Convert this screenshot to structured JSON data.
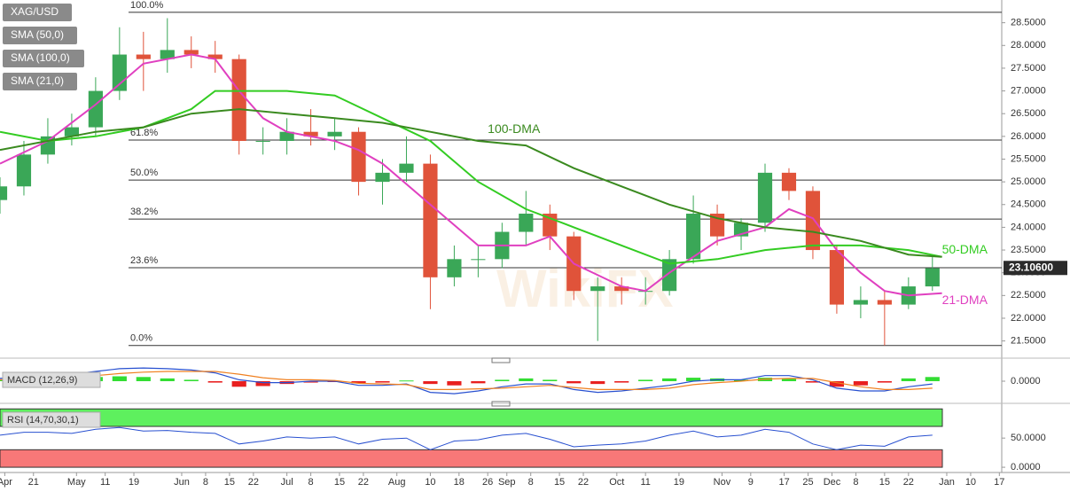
{
  "watermark": "WikiFX",
  "legend_buttons": [
    "XAG/USD",
    "SMA (50,0)",
    "SMA (100,0)",
    "SMA (21,0)"
  ],
  "chart_data": [
    {
      "type": "candlestick",
      "x": [
        0,
        5,
        10,
        15,
        20,
        25,
        30,
        35,
        40,
        45,
        50,
        55,
        60,
        65,
        70,
        75,
        80,
        85,
        90,
        95,
        100,
        105,
        110,
        115,
        120,
        125,
        130,
        135,
        140,
        145,
        150,
        155,
        160,
        165,
        170,
        175,
        180,
        185,
        190,
        195
      ],
      "open": [
        24.6,
        24.9,
        25.6,
        26.0,
        26.2,
        27.0,
        27.8,
        27.7,
        27.9,
        27.8,
        27.7,
        25.9,
        25.9,
        26.1,
        26.0,
        26.1,
        25.0,
        25.2,
        25.4,
        22.9,
        23.3,
        23.3,
        23.9,
        24.3,
        23.8,
        22.6,
        22.7,
        22.6,
        22.6,
        23.3,
        24.3,
        23.8,
        24.1,
        25.2,
        24.8,
        23.5,
        22.3,
        22.4,
        22.3,
        22.7
      ],
      "high": [
        25.1,
        25.9,
        26.4,
        26.5,
        27.3,
        28.4,
        28.3,
        28.6,
        28.2,
        28.1,
        27.8,
        26.2,
        26.4,
        26.6,
        26.4,
        26.2,
        25.5,
        26.0,
        25.6,
        23.6,
        23.6,
        24.1,
        24.8,
        24.5,
        23.9,
        22.9,
        22.9,
        22.9,
        23.5,
        24.7,
        24.5,
        24.2,
        25.4,
        25.3,
        24.9,
        23.6,
        22.7,
        22.6,
        22.9,
        23.4
      ],
      "low": [
        24.3,
        24.7,
        25.4,
        25.8,
        26.0,
        26.8,
        27.0,
        27.4,
        27.5,
        27.4,
        25.6,
        25.6,
        25.6,
        25.8,
        25.7,
        24.7,
        24.5,
        25.0,
        22.2,
        22.7,
        22.9,
        23.1,
        23.6,
        23.5,
        22.4,
        21.5,
        22.3,
        22.3,
        22.5,
        23.2,
        23.6,
        23.5,
        23.9,
        24.6,
        23.3,
        22.1,
        22.0,
        21.4,
        22.2,
        22.6
      ],
      "close": [
        24.9,
        25.6,
        26.0,
        26.2,
        27.0,
        27.8,
        27.7,
        27.9,
        27.8,
        27.7,
        25.9,
        25.9,
        26.1,
        26.0,
        26.1,
        25.0,
        25.2,
        25.4,
        22.9,
        23.3,
        23.3,
        23.9,
        24.3,
        23.8,
        22.6,
        22.7,
        22.6,
        22.6,
        23.3,
        24.3,
        23.8,
        24.1,
        25.2,
        24.8,
        23.5,
        22.3,
        22.4,
        22.3,
        22.7,
        23.1
      ],
      "up_color": "#3aa757",
      "down_color": "#e0533a",
      "series": [
        {
          "name": "SMA (21,0)",
          "color": "#e040c0",
          "x": [
            0,
            10,
            20,
            30,
            40,
            45,
            50,
            55,
            60,
            70,
            75,
            80,
            90,
            100,
            110,
            115,
            120,
            130,
            135,
            140,
            150,
            160,
            165,
            170,
            175,
            180,
            185,
            190,
            197
          ],
          "values": [
            25.4,
            25.9,
            26.7,
            27.6,
            27.8,
            27.7,
            27.0,
            26.4,
            26.1,
            25.9,
            25.7,
            25.4,
            24.5,
            23.6,
            23.6,
            23.8,
            23.2,
            22.7,
            22.6,
            23.0,
            23.7,
            24.0,
            24.4,
            24.2,
            23.5,
            23.0,
            22.6,
            22.5,
            22.55
          ]
        },
        {
          "name": "SMA (50,0)",
          "color": "#33cc22",
          "x": [
            0,
            10,
            20,
            30,
            40,
            45,
            50,
            60,
            70,
            80,
            90,
            100,
            110,
            120,
            130,
            140,
            150,
            160,
            170,
            180,
            190,
            197
          ],
          "values": [
            26.1,
            25.9,
            26.0,
            26.2,
            26.6,
            27.0,
            27.0,
            27.0,
            26.9,
            26.4,
            25.9,
            25.0,
            24.4,
            24.0,
            23.6,
            23.2,
            23.3,
            23.5,
            23.6,
            23.6,
            23.5,
            23.35
          ]
        },
        {
          "name": "SMA (100,0)",
          "color": "#3a8a1f",
          "x": [
            0,
            20,
            30,
            40,
            50,
            60,
            70,
            80,
            90,
            100,
            110,
            120,
            130,
            140,
            150,
            160,
            170,
            180,
            190,
            197
          ],
          "values": [
            25.7,
            26.1,
            26.2,
            26.5,
            26.6,
            26.5,
            26.4,
            26.3,
            26.1,
            25.9,
            25.8,
            25.3,
            24.9,
            24.5,
            24.2,
            24.0,
            23.9,
            23.7,
            23.4,
            23.35
          ]
        }
      ],
      "annotations": [
        {
          "text": "100-DMA",
          "x": 102,
          "y": 26.15,
          "color": "#3a8a1f"
        },
        {
          "text": "50-DMA",
          "x": 197,
          "y": 23.5,
          "color": "#33cc22"
        },
        {
          "text": "21-DMA",
          "x": 197,
          "y": 22.38,
          "color": "#e040c0"
        }
      ],
      "fib_levels": [
        {
          "value": 28.73,
          "label": "100.0%"
        },
        {
          "value": 25.92,
          "label": "61.8%"
        },
        {
          "value": 25.04,
          "label": "50.0%"
        },
        {
          "value": 24.18,
          "label": "38.2%"
        },
        {
          "value": 23.11,
          "label": "23.6%"
        },
        {
          "value": 21.4,
          "label": "0.0%"
        }
      ],
      "last_price": {
        "value": 23.106,
        "label": "23.10600"
      },
      "xlim": [
        0,
        209.5
      ],
      "ylim": [
        21.2,
        29.0
      ],
      "yticks": [
        {
          "value": 21.5,
          "label": "21.5000"
        },
        {
          "value": 22,
          "label": "22.0000"
        },
        {
          "value": 22.5,
          "label": "22.5000"
        },
        {
          "value": 23,
          "label": "23.0000"
        },
        {
          "value": 23.5,
          "label": "23.5000"
        },
        {
          "value": 24,
          "label": "24.0000"
        },
        {
          "value": 24.5,
          "label": "24.5000"
        },
        {
          "value": 25,
          "label": "25.0000"
        },
        {
          "value": 25.5,
          "label": "25.5000"
        },
        {
          "value": 26,
          "label": "26.0000"
        },
        {
          "value": 26.5,
          "label": "26.5000"
        },
        {
          "value": 27,
          "label": "27.0000"
        },
        {
          "value": 27.5,
          "label": "27.5000"
        },
        {
          "value": 28,
          "label": "28.0000"
        },
        {
          "value": 28.5,
          "label": "28.5000"
        }
      ],
      "xticks": [
        {
          "value": 1,
          "label": "Apr"
        },
        {
          "value": 7,
          "label": "21"
        },
        {
          "value": 16,
          "label": "May"
        },
        {
          "value": 22,
          "label": "11"
        },
        {
          "value": 28,
          "label": "19"
        },
        {
          "value": 38,
          "label": "Jun"
        },
        {
          "value": 43,
          "label": "8"
        },
        {
          "value": 48,
          "label": "15"
        },
        {
          "value": 53,
          "label": "22"
        },
        {
          "value": 60,
          "label": "Jul"
        },
        {
          "value": 65,
          "label": "8"
        },
        {
          "value": 71,
          "label": "15"
        },
        {
          "value": 76,
          "label": "22"
        },
        {
          "value": 83,
          "label": "Aug"
        },
        {
          "value": 90,
          "label": "10"
        },
        {
          "value": 96,
          "label": "18"
        },
        {
          "value": 102,
          "label": "26"
        },
        {
          "value": 106,
          "label": "Sep"
        },
        {
          "value": 111,
          "label": "8"
        },
        {
          "value": 117,
          "label": "15"
        },
        {
          "value": 122,
          "label": "22"
        },
        {
          "value": 129,
          "label": "Oct"
        },
        {
          "value": 135,
          "label": "11"
        },
        {
          "value": 142,
          "label": "19"
        },
        {
          "value": 151,
          "label": "Nov"
        },
        {
          "value": 157,
          "label": "9"
        },
        {
          "value": 164,
          "label": "17"
        },
        {
          "value": 169,
          "label": "25"
        },
        {
          "value": 174,
          "label": "Dec"
        },
        {
          "value": 179,
          "label": "8"
        },
        {
          "value": 185,
          "label": "15"
        },
        {
          "value": 190,
          "label": "22"
        },
        {
          "value": 198,
          "label": "Jan"
        },
        {
          "value": 203,
          "label": "10"
        },
        {
          "value": 209,
          "label": "17"
        }
      ]
    },
    {
      "type": "macd",
      "title": "MACD (12,26,9)",
      "x": [
        0,
        5,
        10,
        15,
        20,
        25,
        30,
        35,
        40,
        45,
        50,
        55,
        60,
        65,
        70,
        75,
        80,
        85,
        90,
        95,
        100,
        105,
        110,
        115,
        120,
        125,
        130,
        135,
        140,
        145,
        150,
        155,
        160,
        165,
        170,
        175,
        180,
        185,
        190,
        195
      ],
      "histogram": [
        0.1,
        0.15,
        0.2,
        0.25,
        0.3,
        0.35,
        0.3,
        0.2,
        0.1,
        -0.1,
        -0.4,
        -0.35,
        -0.2,
        -0.1,
        -0.05,
        -0.15,
        -0.1,
        0.05,
        -0.2,
        -0.3,
        -0.15,
        0.1,
        0.2,
        0.1,
        -0.15,
        -0.2,
        -0.1,
        0.1,
        0.2,
        0.25,
        0.2,
        0.1,
        0.25,
        0.2,
        -0.1,
        -0.4,
        -0.3,
        -0.1,
        0.2,
        0.3
      ],
      "up_color": "#33dd33",
      "down_color": "#e82020",
      "series": [
        {
          "name": "MACD",
          "color": "#2850d0",
          "values": [
            0.2,
            0.3,
            0.4,
            0.5,
            0.7,
            0.9,
            0.95,
            0.9,
            0.8,
            0.6,
            0.1,
            -0.1,
            -0.1,
            0.0,
            0.0,
            -0.3,
            -0.3,
            -0.2,
            -0.8,
            -0.9,
            -0.7,
            -0.4,
            -0.2,
            -0.2,
            -0.6,
            -0.8,
            -0.7,
            -0.5,
            -0.3,
            0.0,
            0.1,
            0.1,
            0.4,
            0.4,
            0.1,
            -0.5,
            -0.7,
            -0.7,
            -0.4,
            -0.2
          ]
        },
        {
          "name": "Signal",
          "color": "#f08020",
          "values": [
            0.1,
            0.15,
            0.2,
            0.25,
            0.4,
            0.55,
            0.65,
            0.7,
            0.7,
            0.7,
            0.5,
            0.25,
            0.1,
            0.1,
            0.05,
            -0.15,
            -0.2,
            -0.25,
            -0.6,
            -0.6,
            -0.55,
            -0.5,
            -0.4,
            -0.3,
            -0.45,
            -0.6,
            -0.6,
            -0.6,
            -0.5,
            -0.25,
            -0.1,
            0.0,
            0.15,
            0.2,
            0.2,
            -0.1,
            -0.4,
            -0.6,
            -0.6,
            -0.5
          ]
        }
      ],
      "xlim": [
        0,
        209.5
      ],
      "ylim": [
        -1.4,
        1.4
      ],
      "yticks": [
        {
          "value": 0,
          "label": "0.0000"
        }
      ]
    },
    {
      "type": "rsi",
      "title": "RSI (14,70,30,1)",
      "x": [
        0,
        5,
        10,
        15,
        20,
        25,
        30,
        35,
        40,
        45,
        50,
        55,
        60,
        65,
        70,
        75,
        80,
        85,
        90,
        95,
        100,
        105,
        110,
        115,
        120,
        125,
        130,
        135,
        140,
        145,
        150,
        155,
        160,
        165,
        170,
        175,
        180,
        185,
        190,
        195
      ],
      "values": [
        55,
        60,
        60,
        58,
        65,
        68,
        62,
        63,
        60,
        58,
        40,
        45,
        52,
        50,
        52,
        40,
        48,
        50,
        30,
        45,
        47,
        55,
        58,
        48,
        35,
        38,
        40,
        45,
        55,
        62,
        52,
        55,
        65,
        60,
        40,
        30,
        38,
        36,
        52,
        55
      ],
      "color": "#2850d0",
      "overbought": 70,
      "oversold": 30,
      "overbought_color": "#5ef05e",
      "oversold_color": "#f87878",
      "xlim": [
        0,
        209.5
      ],
      "ylim": [
        -9,
        108
      ],
      "yticks": [
        {
          "value": 0,
          "label": "0.0000"
        },
        {
          "value": 50,
          "label": "50.0000"
        }
      ]
    }
  ]
}
